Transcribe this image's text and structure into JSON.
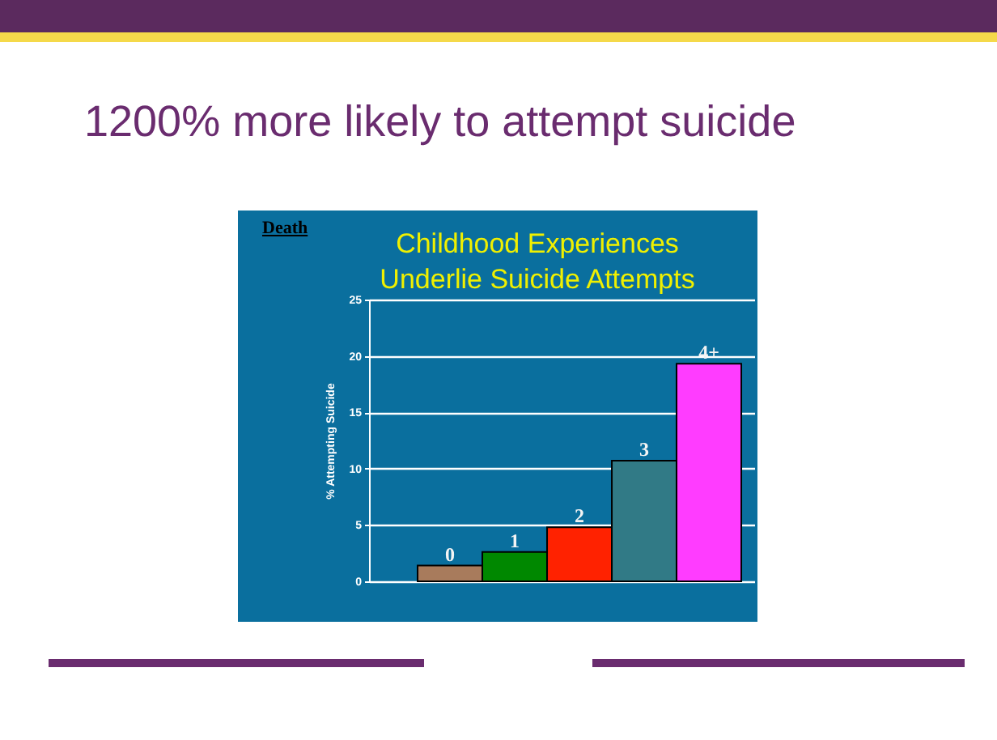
{
  "chart_data": {
    "type": "bar",
    "title": "1200% more likely to attempt suicide",
    "subtitle": "Childhood Experiences Underlie Suicide Attempts",
    "ylabel": "% Attempting Suicide",
    "annotations": [
      "Death"
    ],
    "categories": [
      "0",
      "1",
      "2",
      "3",
      "4+"
    ],
    "values": [
      1.4,
      2.6,
      4.8,
      10.7,
      19.3
    ],
    "colors": [
      "#a87b5c",
      "#008800",
      "#ff2200",
      "#317a86",
      "#ff3cff"
    ],
    "ylim": [
      0,
      25
    ],
    "yticks": [
      0,
      5,
      10,
      15,
      20,
      25
    ],
    "grid": "y"
  }
}
